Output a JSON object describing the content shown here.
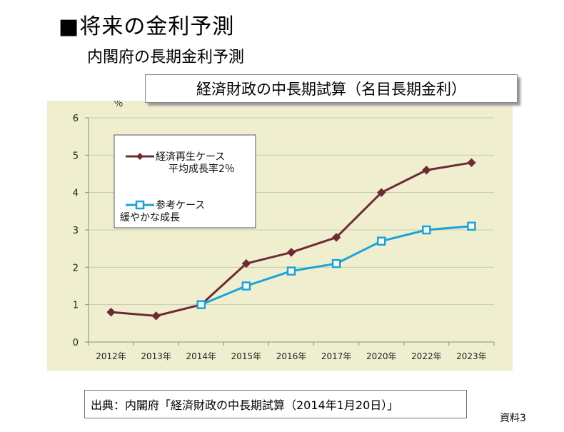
{
  "header": {
    "title": "■将来の金利予測",
    "subtitle": "内閣府の長期金利予測"
  },
  "caption": "経済財政の中長期試算（名目長期金利）",
  "source": "出典：内閣府「経済財政の中長期試算（2014年1月20日）」",
  "doc_ref": "資料3",
  "chart_data": {
    "type": "line",
    "ylabel": "％",
    "ylim": [
      0,
      6
    ],
    "yticks": [
      0,
      1,
      2,
      3,
      4,
      5,
      6
    ],
    "categories": [
      "2012年",
      "2013年",
      "2014年",
      "2015年",
      "2016年",
      "2017年",
      "2020年",
      "2022年",
      "2023年"
    ],
    "grid": true,
    "legend_position": "top-left",
    "series": [
      {
        "name": "経済再生ケース",
        "name_line2": "平均成長率2％",
        "color": "#6e2a35",
        "marker": "diamond",
        "values": [
          0.8,
          0.7,
          1.0,
          2.1,
          2.4,
          2.8,
          4.0,
          4.6,
          4.8
        ]
      },
      {
        "name": "参考ケース",
        "name_line2": "緩やかな成長",
        "color": "#1aa3d9",
        "marker": "square",
        "values": [
          null,
          null,
          1.0,
          1.5,
          1.9,
          2.1,
          2.7,
          3.0,
          3.1
        ]
      }
    ]
  }
}
